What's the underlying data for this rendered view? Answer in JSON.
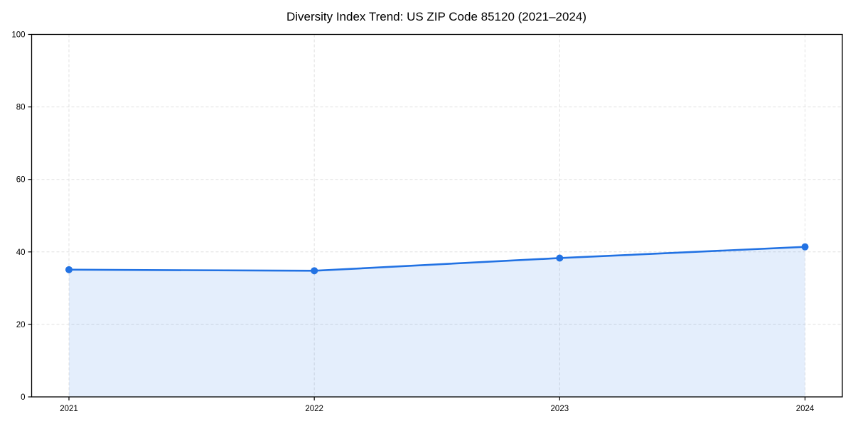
{
  "page": {
    "title": "Diversity Index Trend: US ZIP Code 85120 (2021–2024)"
  },
  "chart_data": {
    "type": "line",
    "title": "Diversity Index Trend: US ZIP Code 85120 (2021–2024)",
    "categories": [
      "2021",
      "2022",
      "2023",
      "2024"
    ],
    "series": [
      {
        "name": "Diversity Index",
        "values": [
          35.1,
          34.8,
          38.3,
          41.4
        ]
      }
    ],
    "xlabel": "",
    "ylabel": "",
    "ylim": [
      0,
      100
    ],
    "yticks": [
      0,
      20,
      40,
      60,
      80,
      100
    ],
    "grid": true,
    "grid_style": "dashed",
    "area_fill": true,
    "markers": true,
    "legend_position": "none",
    "colors": {
      "line": "#2272e3",
      "marker": "#2272e3",
      "area_fill_opacity": 0.12,
      "grid": "#e0e0e0",
      "spine": "#000000",
      "tick_text": "#000000",
      "background": "#ffffff"
    }
  }
}
